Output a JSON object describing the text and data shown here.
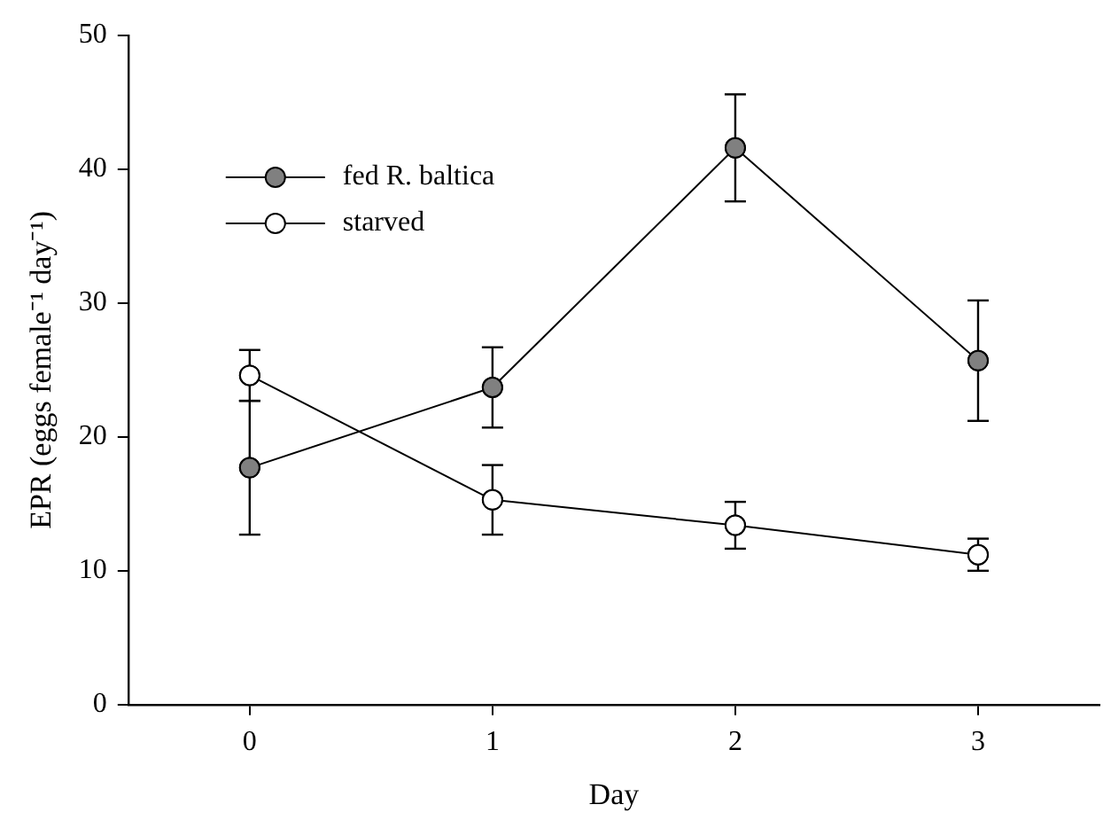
{
  "chart_data": {
    "type": "line",
    "xlabel": "Day",
    "ylabel": "EPR (eggs female⁻¹ day⁻¹)",
    "x": [
      0,
      1,
      2,
      3
    ],
    "xlim": [
      -0.5,
      3.5
    ],
    "xticks": [
      0,
      1,
      2,
      3
    ],
    "ylim": [
      0,
      50
    ],
    "yticks": [
      0,
      10,
      20,
      30,
      40,
      50
    ],
    "grid": false,
    "legend": "top left",
    "marker": "circle",
    "line_style": "solid",
    "series": [
      {
        "name": "fed R. baltica",
        "color": "#808080",
        "values": [
          17.7,
          23.7,
          41.6,
          25.7
        ],
        "errors": [
          5,
          3,
          4,
          4.5
        ]
      },
      {
        "name": "starved",
        "color": "#ffffff",
        "values": [
          24.6,
          15.3,
          13.4,
          11.2
        ],
        "errors": [
          1.9,
          2.6,
          1.75,
          1.2
        ]
      }
    ]
  }
}
